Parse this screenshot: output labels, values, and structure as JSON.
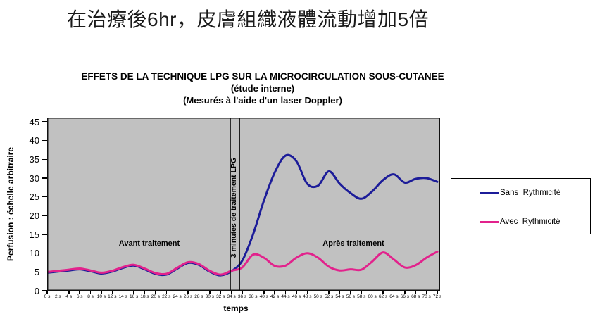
{
  "page": {
    "heading": "在治療後6hr，皮膚組織液體流動增加5倍"
  },
  "chart": {
    "title_line1": "EFFETS DE LA TECHNIQUE LPG SUR LA MICROCIRCULATION SOUS-CUTANEE",
    "title_line2": "(étude interne)",
    "title_line3": "(Mesurés à l'aide d'un laser Doppler)",
    "y_axis_label": "Perfusion : échelle arbitraire",
    "x_axis_label": "temps",
    "annotations": {
      "before": "Avant traitement",
      "during": "3 minutes de traitement LPG",
      "after": "Après traitement"
    },
    "legend": [
      {
        "label": "Sans  Rythmicité",
        "color": "#1c1c99"
      },
      {
        "label": "Avec  Rythmicité",
        "color": "#e2228c"
      }
    ]
  },
  "chart_data": {
    "type": "line",
    "title": "EFFETS DE LA TECHNIQUE LPG SUR LA MICROCIRCULATION SOUS-CUTANEE (étude interne) (Mesurés à l'aide d'un laser Doppler)",
    "xlabel": "temps",
    "ylabel": "Perfusion : échelle arbitraire",
    "x_unit": "s",
    "x": [
      0,
      2,
      4,
      6,
      8,
      10,
      12,
      14,
      16,
      18,
      20,
      22,
      24,
      26,
      28,
      30,
      32,
      34,
      36,
      38,
      40,
      42,
      44,
      46,
      48,
      50,
      52,
      54,
      56,
      58,
      60,
      62,
      64,
      66,
      68,
      70,
      72
    ],
    "x_tick_labels": [
      "0 s",
      "2 s",
      "4 s",
      "6 s",
      "8 s",
      "10 s",
      "12 s",
      "14 s",
      "16 s",
      "18 s",
      "20 s",
      "22 s",
      "24 s",
      "26 s",
      "28 s",
      "30 s",
      "32 s",
      "34 s",
      "36 s",
      "38 s",
      "40 s",
      "42 s",
      "44 s",
      "46 s",
      "48 s",
      "50 s",
      "52 s",
      "54 s",
      "56 s",
      "58 s",
      "60 s",
      "62 s",
      "64 s",
      "66 s",
      "68 s",
      "70 s",
      "72 s"
    ],
    "y_ticks": [
      0,
      5,
      10,
      15,
      20,
      25,
      30,
      35,
      40,
      45
    ],
    "ylim": [
      0,
      45
    ],
    "grid": false,
    "plot_bg": "#c1c1c1",
    "legend_position": "right",
    "treatment_window_s": {
      "from": 33.8,
      "to": 35.5
    },
    "series": [
      {
        "name": "Sans Rythmicité",
        "color": "#1c1c99",
        "values": [
          4.8,
          5.1,
          5.4,
          5.7,
          5.2,
          4.6,
          5.1,
          6.1,
          6.7,
          5.7,
          4.5,
          4.3,
          5.9,
          7.4,
          6.9,
          5.1,
          4.1,
          5.2,
          8,
          15,
          24,
          31.5,
          36,
          34.5,
          28.5,
          28,
          31.8,
          28.5,
          26,
          24.5,
          26.5,
          29.5,
          31,
          28.8,
          29.8,
          30,
          29
        ]
      },
      {
        "name": "Avec Rythmicité",
        "color": "#e2228c",
        "values": [
          5,
          5.3,
          5.6,
          5.9,
          5.4,
          4.8,
          5.3,
          6.3,
          6.9,
          5.9,
          4.7,
          4.5,
          6.1,
          7.6,
          7.1,
          5.3,
          4.3,
          5.3,
          6.2,
          9.6,
          8.8,
          6.6,
          6.7,
          8.8,
          10,
          8.8,
          6.4,
          5.4,
          5.7,
          5.6,
          7.8,
          10.2,
          8.3,
          6.2,
          6.8,
          8.8,
          10.4
        ]
      }
    ]
  }
}
